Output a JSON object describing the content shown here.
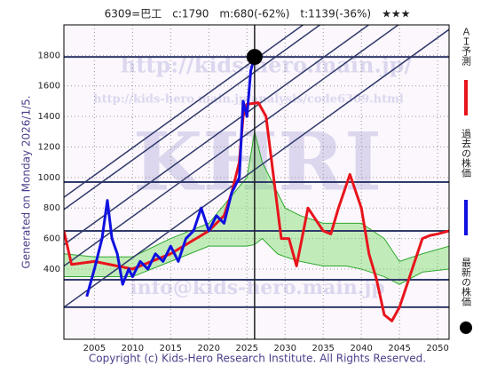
{
  "chart_data": {
    "type": "line",
    "title": "6309=巴工　c:1790　m:680(-62%)　t:1139(-36%)　★★★",
    "side_label": "Generated on Monday 2026/1/5.",
    "footer": "Copyright (c) Kids-Hero Research Institute. All Rights Reserved.",
    "watermarks": [
      "http://kids-hero.main.jp/",
      "http://kids-hero.main.jp/analysis/code6309.html",
      "KHRI",
      "info@kids-hero.main.jp"
    ],
    "xlim": [
      2001,
      2051.5
    ],
    "ylim": [
      -60,
      2000
    ],
    "xticks": [
      2005,
      2010,
      2015,
      2020,
      2025,
      2030,
      2035,
      2040,
      2045,
      2050
    ],
    "yticks": [
      400,
      600,
      800,
      1000,
      1200,
      1400,
      1600,
      1800
    ],
    "grid": true,
    "band": {
      "color": "#7ddc6a",
      "x": [
        2001,
        2005,
        2010,
        2015,
        2020,
        2025,
        2026,
        2027,
        2029,
        2030,
        2032,
        2035,
        2038,
        2040,
        2043,
        2045,
        2048,
        2051.5
      ],
      "upper": [
        500,
        480,
        480,
        600,
        700,
        1000,
        1300,
        1100,
        900,
        800,
        750,
        700,
        700,
        700,
        600,
        450,
        500,
        550
      ],
      "lower": [
        350,
        350,
        350,
        450,
        550,
        550,
        560,
        600,
        500,
        480,
        450,
        420,
        420,
        400,
        350,
        300,
        380,
        400
      ]
    },
    "series": [
      {
        "name": "ＡＩ予測",
        "color": "#e8141c",
        "x": [
          2001,
          2002,
          2005,
          2010,
          2015,
          2020,
          2022,
          2023,
          2024,
          2024.5,
          2025,
          2026.5,
          2027.5,
          2028.5,
          2029.5,
          2030.5,
          2031.5,
          2033,
          2035,
          2036,
          2037,
          2038.5,
          2040,
          2041,
          2042,
          2043,
          2044,
          2045,
          2046,
          2047,
          2048,
          2049,
          2050,
          2051.5
        ],
        "values": [
          650,
          430,
          450,
          400,
          500,
          650,
          750,
          900,
          1100,
          1400,
          1480,
          1490,
          1400,
          1000,
          600,
          600,
          420,
          800,
          650,
          630,
          800,
          1020,
          800,
          500,
          330,
          100,
          60,
          150,
          300,
          450,
          600,
          620,
          630,
          650
        ]
      },
      {
        "name": "過去の株価",
        "color": "#1010e0",
        "x": [
          2004,
          2005,
          2006,
          2006.7,
          2007.3,
          2008,
          2008.7,
          2009.5,
          2010,
          2011,
          2012,
          2013,
          2014,
          2015,
          2016,
          2017,
          2018,
          2019,
          2020,
          2021,
          2022,
          2023,
          2024,
          2024.5,
          2025,
          2025.5,
          2026
        ],
        "values": [
          220,
          400,
          600,
          850,
          600,
          500,
          300,
          400,
          350,
          450,
          400,
          500,
          450,
          550,
          450,
          600,
          650,
          800,
          650,
          750,
          700,
          900,
          1000,
          1500,
          1400,
          1700,
          1790
        ]
      }
    ],
    "levels": [
      1790,
      970,
      650,
      330,
      150
    ],
    "trend_lines": [
      {
        "x": [
          2001,
          2051.5
        ],
        "y": [
          150,
          1970
        ]
      },
      {
        "x": [
          2001,
          2051.5
        ],
        "y": [
          420,
          2240
        ]
      },
      {
        "x": [
          2001,
          2051.5
        ],
        "y": [
          560,
          2380
        ]
      },
      {
        "x": [
          2001,
          2051.5
        ],
        "y": [
          790,
          2610
        ]
      },
      {
        "x": [
          2001,
          2051.5
        ],
        "y": [
          870,
          2690
        ]
      }
    ],
    "current_x": 2026,
    "latest": {
      "name": "最新の株価",
      "x": 2026,
      "y": 1790,
      "color": "#000000"
    }
  }
}
